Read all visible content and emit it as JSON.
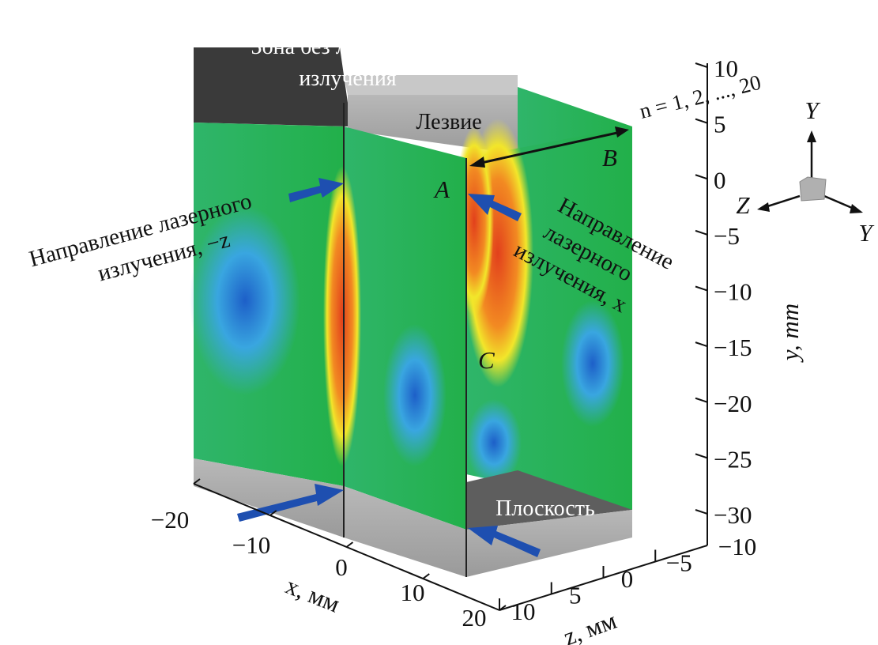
{
  "chart_data": {
    "type": "heatmap",
    "title": "",
    "axes": {
      "x": {
        "label": "x, мм",
        "ticks": [
          "−20",
          "−10",
          "0",
          "10",
          "20"
        ],
        "range": [
          -20,
          20
        ]
      },
      "y": {
        "label": "y, mm",
        "ticks": [
          "10",
          "5",
          "0",
          "−5",
          "−10",
          "−15",
          "−20",
          "−25",
          "−30"
        ],
        "range": [
          -30,
          10
        ]
      },
      "z": {
        "label": "z, мм",
        "ticks": [
          "10",
          "5",
          "0",
          "−5",
          "−10"
        ],
        "range": [
          -10,
          10
        ]
      }
    },
    "annotations": {
      "no_laser_zone": [
        "Зона без лазерного",
        "излучения"
      ],
      "blade": "Лезвие",
      "plane": "Плоскость",
      "laser_dir_z": [
        "Направление лазерного",
        "излучения, −z"
      ],
      "laser_dir_x": [
        "Направление",
        "лазерного",
        "излучения, x"
      ],
      "point_a": "A",
      "point_b": "B",
      "point_c": "C",
      "n_range": "n = 1, 2, ..., 20"
    },
    "orientation_triad": {
      "up": "Y",
      "left": "Z",
      "right": "Y"
    },
    "colormap": [
      "#1560c8",
      "#2ea0e0",
      "#16b24a",
      "#f2e62a",
      "#f07a20",
      "#e23a1c"
    ],
    "colors": {
      "dark_block": "#3a3a3a",
      "gray_block": "#a8a8a8",
      "arrow": "#1e4fb0"
    }
  }
}
